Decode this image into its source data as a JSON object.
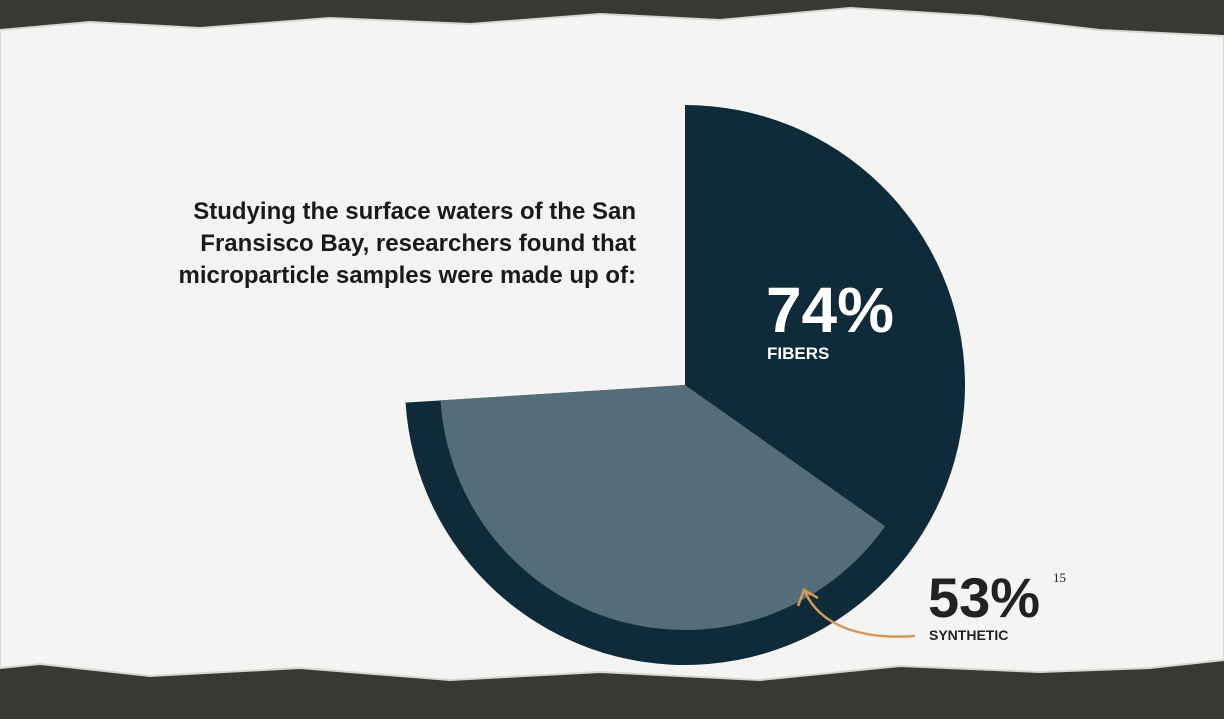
{
  "chart_data": {
    "type": "pie",
    "title": "Studying the surface waters of the San Fransisco Bay, researchers found that microparticle samples were made up of:",
    "categories": [
      "FIBERS",
      "SYNTHETIC"
    ],
    "values": [
      74,
      53
    ],
    "value_labels": [
      "74%",
      "53%"
    ],
    "colors": [
      "#0f2a38",
      "#5d7480"
    ],
    "footnote": "15"
  }
}
